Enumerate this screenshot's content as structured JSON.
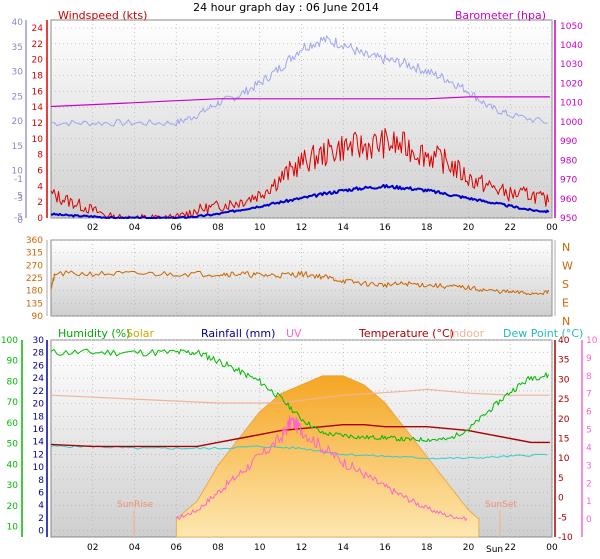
{
  "page_title": "24 hour graph day : 06 June 2014",
  "colors": {
    "wind": "#dd0000",
    "gust_line": "#0000cc",
    "baro": "#cc00cc",
    "dir": "#cc6600",
    "humidity": "#00bb00",
    "solar": "#ccaa00",
    "solar_fill": "#f7c46a",
    "rain": "#000099",
    "uv": "#ff66cc",
    "temp": "#aa0000",
    "indoor": "#f0b49a",
    "dew": "#33cccc",
    "grid": "#b0b0b0"
  },
  "x_tick_labels": [
    "02",
    "04",
    "06",
    "08",
    "10",
    "12",
    "14",
    "16",
    "18",
    "20",
    "22",
    "00"
  ],
  "chart_data": [
    {
      "type": "line",
      "title": "Windspeed (kts)",
      "right_title": "Barometer (hpa)",
      "x_unit": "hour",
      "xlim": [
        0,
        24
      ],
      "left_ticks": [
        0,
        2,
        4,
        6,
        8,
        10,
        12,
        14,
        16,
        18,
        20,
        22,
        24
      ],
      "ylim": [
        0,
        25
      ],
      "far_left_ticks": [
        0,
        5,
        10,
        15,
        20,
        25,
        30,
        35,
        40
      ],
      "far_left_neg_ticks": [
        "-1",
        "-3",
        "-5"
      ],
      "right_ticks": [
        950,
        960,
        970,
        980,
        990,
        1000,
        1010,
        1020,
        1030,
        1040,
        1050
      ],
      "right_ylim": [
        950,
        1053
      ],
      "series": [
        {
          "name": "Windspeed (kts)",
          "x": [
            0,
            1,
            2,
            3,
            4,
            5,
            6,
            7,
            8,
            9,
            10,
            11,
            12,
            13,
            14,
            15,
            16,
            17,
            18,
            19,
            20,
            21,
            22,
            23,
            23.9
          ],
          "values": [
            3,
            2,
            1,
            0,
            0,
            0,
            0,
            1,
            1.5,
            2,
            3,
            5,
            7,
            8,
            9,
            9,
            9.5,
            9,
            8,
            7,
            5,
            4,
            3,
            3,
            2
          ]
        },
        {
          "x": [
            0,
            1,
            2,
            3,
            4,
            5,
            6,
            7,
            8,
            9,
            10,
            11,
            12,
            13,
            14,
            15,
            16,
            17,
            18,
            19,
            20,
            21,
            22,
            23,
            23.9
          ],
          "values": [
            0.5,
            0.3,
            0.2,
            0,
            0,
            0,
            0,
            0.2,
            0.5,
            1,
            1.5,
            2,
            2.5,
            3,
            3.5,
            3.8,
            4,
            3.8,
            3.5,
            3,
            2.5,
            2,
            1.5,
            1,
            0.8
          ]
        },
        {
          "name": "Barometer (hpa)",
          "x": [
            0,
            2,
            4,
            6,
            8,
            10,
            12,
            14,
            16,
            18,
            20,
            22,
            23.9
          ],
          "values": [
            1008,
            1009,
            1010,
            1011,
            1012,
            1012,
            1012,
            1012,
            1012,
            1012,
            1013,
            1013,
            1013
          ]
        },
        {
          "x": [
            0,
            2,
            4,
            6,
            7,
            8,
            9,
            10,
            11,
            12,
            13,
            14,
            15,
            16,
            17,
            18,
            19,
            20,
            21,
            22,
            23.9
          ],
          "values": [
            12,
            12,
            12,
            12,
            13,
            14.5,
            15.5,
            17,
            19,
            21.5,
            22.5,
            22,
            20.5,
            20,
            19.5,
            18.5,
            17.5,
            16,
            14,
            13,
            12
          ]
        }
      ]
    },
    {
      "type": "line",
      "x_unit": "hour",
      "xlim": [
        0,
        24
      ],
      "left_ticks": [
        90,
        135,
        180,
        225,
        270,
        315,
        360
      ],
      "ylim": [
        90,
        360
      ],
      "compass_labels": [
        "N",
        "W",
        "S",
        "E",
        "N"
      ],
      "series": [
        {
          "x": [
            0,
            0.2,
            2,
            4,
            6,
            8,
            9,
            10,
            11,
            12,
            13,
            14,
            15,
            16,
            17,
            18,
            19,
            20,
            21,
            22,
            23,
            23.9
          ],
          "values": [
            190,
            240,
            240,
            240,
            240,
            240,
            240,
            235,
            235,
            240,
            230,
            215,
            205,
            200,
            205,
            200,
            195,
            190,
            180,
            175,
            170,
            175
          ]
        }
      ]
    },
    {
      "type": "area",
      "legend": [
        "Humidity (%)",
        "Solar",
        "Rainfall (mm)",
        "UV",
        "Temperature (°C)",
        "Indoor",
        "Dew Point (°C)"
      ],
      "annotations": [
        "SunRise",
        "SunSet",
        "Sun"
      ],
      "x_unit": "hour",
      "xlim": [
        0,
        24
      ],
      "humidity_ticks": [
        10,
        20,
        30,
        40,
        50,
        60,
        70,
        80,
        90,
        100
      ],
      "humidity_ylim": [
        5,
        100
      ],
      "rain_ticks": [
        0,
        2,
        4,
        6,
        8,
        10,
        12,
        14,
        16,
        18,
        20,
        22,
        24,
        26,
        28,
        30
      ],
      "temp_ticks": [
        -10,
        -5,
        0,
        5,
        10,
        15,
        20,
        25,
        30,
        35,
        40
      ],
      "temp_ylim": [
        -10,
        40
      ],
      "uv_ticks": [
        0,
        1,
        2,
        3,
        4,
        5,
        6,
        7,
        8,
        9,
        10
      ],
      "uv_ylim": [
        -1,
        10
      ],
      "series": [
        {
          "name": "Humidity (%)",
          "x": [
            0,
            2,
            4,
            6,
            7,
            8,
            9,
            10,
            11,
            12,
            13,
            14,
            15,
            16,
            17,
            18,
            19,
            20,
            21,
            22,
            23,
            23.9
          ],
          "values": [
            94,
            94,
            94,
            94,
            94,
            90,
            85,
            80,
            72,
            62,
            55,
            54,
            53,
            53,
            52,
            52,
            52,
            57,
            66,
            75,
            82,
            83
          ]
        },
        {
          "name": "Temperature (°C)",
          "x": [
            0,
            2,
            4,
            6,
            7,
            8,
            9,
            10,
            11,
            12,
            13,
            14,
            15,
            16,
            17,
            18,
            19,
            20,
            21,
            22,
            23,
            23.9
          ],
          "values": [
            13.5,
            13,
            13,
            13,
            13,
            14,
            15,
            16,
            17,
            17.5,
            18,
            18.5,
            18.5,
            18,
            18,
            18,
            17.5,
            17,
            16,
            15,
            14,
            14
          ]
        },
        {
          "name": "Indoor",
          "x": [
            0,
            4,
            8,
            11,
            14,
            17,
            18,
            20,
            22,
            23.9
          ],
          "values": [
            26,
            25,
            24,
            24,
            26,
            27,
            27.5,
            26.5,
            26,
            26
          ]
        },
        {
          "name": "Dew Point (°C)",
          "x": [
            0,
            2,
            4,
            6,
            8,
            10,
            12,
            14,
            16,
            18,
            20,
            22,
            23.9
          ],
          "values": [
            13,
            13,
            12.5,
            12.5,
            12.5,
            13,
            12.5,
            11,
            10.5,
            10,
            10,
            10.5,
            11
          ]
        },
        {
          "name": "Solar",
          "x": [
            6,
            7,
            8,
            9,
            10,
            11,
            12,
            13,
            14,
            15,
            16,
            17,
            18,
            19,
            20,
            20.5
          ],
          "values": [
            0,
            1,
            3,
            4.5,
            6,
            7,
            7.5,
            8,
            8,
            7.5,
            6.5,
            5,
            3.5,
            2,
            0.5,
            0
          ]
        },
        {
          "name": "UV",
          "x": [
            6,
            7,
            8,
            9,
            10,
            11,
            11.5,
            12,
            13,
            14,
            15,
            16,
            17,
            18,
            19,
            20
          ],
          "values": [
            0,
            0.5,
            1.5,
            2.5,
            3.5,
            4.5,
            5.5,
            5,
            4,
            3.2,
            2.5,
            1.8,
            1.2,
            0.6,
            0.2,
            0
          ]
        }
      ]
    }
  ]
}
